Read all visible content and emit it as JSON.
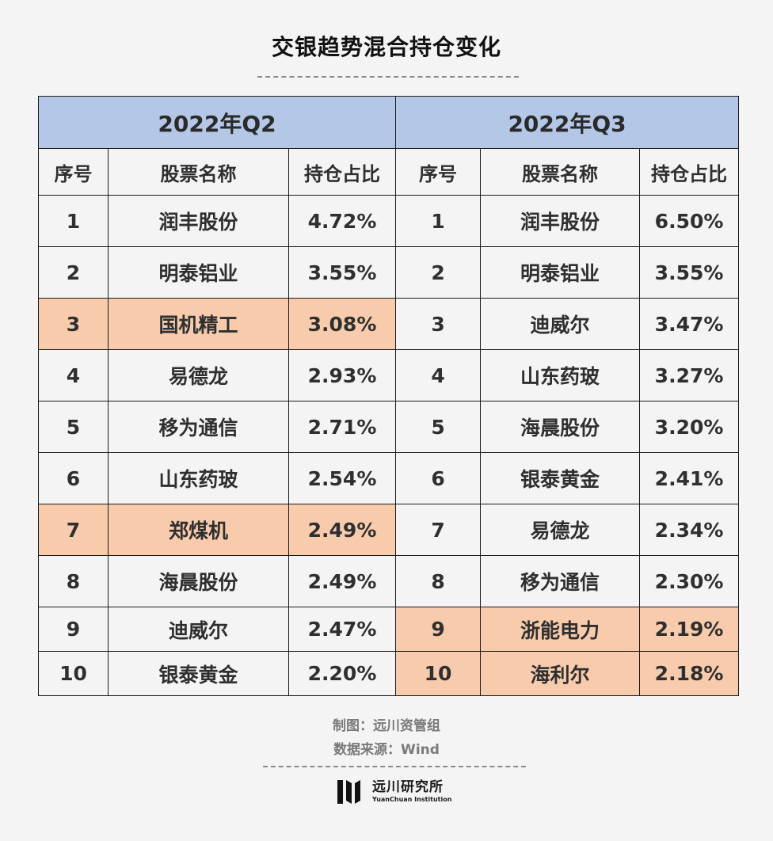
{
  "title": "交银趋势混合持仓变化",
  "table": {
    "quarters": [
      "2022年Q2",
      "2022年Q3"
    ],
    "columns": [
      "序号",
      "股票名称",
      "持仓占比"
    ],
    "q2_rows": [
      {
        "rank": "1",
        "name": "润丰股份",
        "share": "4.72%",
        "highlight": false
      },
      {
        "rank": "2",
        "name": "明泰铝业",
        "share": "3.55%",
        "highlight": false
      },
      {
        "rank": "3",
        "name": "国机精工",
        "share": "3.08%",
        "highlight": true
      },
      {
        "rank": "4",
        "name": "易德龙",
        "share": "2.93%",
        "highlight": false
      },
      {
        "rank": "5",
        "name": "移为通信",
        "share": "2.71%",
        "highlight": false
      },
      {
        "rank": "6",
        "name": "山东药玻",
        "share": "2.54%",
        "highlight": false
      },
      {
        "rank": "7",
        "name": "郑煤机",
        "share": "2.49%",
        "highlight": true
      },
      {
        "rank": "8",
        "name": "海晨股份",
        "share": "2.49%",
        "highlight": false
      },
      {
        "rank": "9",
        "name": "迪威尔",
        "share": "2.47%",
        "highlight": false
      },
      {
        "rank": "10",
        "name": "银泰黄金",
        "share": "2.20%",
        "highlight": false
      }
    ],
    "q3_rows": [
      {
        "rank": "1",
        "name": "润丰股份",
        "share": "6.50%",
        "highlight": false
      },
      {
        "rank": "2",
        "name": "明泰铝业",
        "share": "3.55%",
        "highlight": false
      },
      {
        "rank": "3",
        "name": "迪威尔",
        "share": "3.47%",
        "highlight": false
      },
      {
        "rank": "4",
        "name": "山东药玻",
        "share": "3.27%",
        "highlight": false
      },
      {
        "rank": "5",
        "name": "海晨股份",
        "share": "3.20%",
        "highlight": false
      },
      {
        "rank": "6",
        "name": "银泰黄金",
        "share": "2.41%",
        "highlight": false
      },
      {
        "rank": "7",
        "name": "易德龙",
        "share": "2.34%",
        "highlight": false
      },
      {
        "rank": "8",
        "name": "移为通信",
        "share": "2.30%",
        "highlight": false
      },
      {
        "rank": "9",
        "name": "浙能电力",
        "share": "2.19%",
        "highlight": true
      },
      {
        "rank": "10",
        "name": "海利尔",
        "share": "2.18%",
        "highlight": true
      }
    ],
    "colors": {
      "header": "#b4c7e7",
      "highlight": "#f8cbad"
    }
  },
  "chart_data": {
    "type": "table",
    "title": "交银趋势混合持仓变化",
    "columns": [
      "序号",
      "股票名称",
      "持仓占比"
    ],
    "groups": [
      {
        "name": "2022年Q2",
        "rows": [
          [
            "1",
            "润丰股份",
            "4.72%"
          ],
          [
            "2",
            "明泰铝业",
            "3.55%"
          ],
          [
            "3",
            "国机精工",
            "3.08%"
          ],
          [
            "4",
            "易德龙",
            "2.93%"
          ],
          [
            "5",
            "移为通信",
            "2.71%"
          ],
          [
            "6",
            "山东药玻",
            "2.54%"
          ],
          [
            "7",
            "郑煤机",
            "2.49%"
          ],
          [
            "8",
            "海晨股份",
            "2.49%"
          ],
          [
            "9",
            "迪威尔",
            "2.47%"
          ],
          [
            "10",
            "银泰黄金",
            "2.20%"
          ]
        ]
      },
      {
        "name": "2022年Q3",
        "rows": [
          [
            "1",
            "润丰股份",
            "6.50%"
          ],
          [
            "2",
            "明泰铝业",
            "3.55%"
          ],
          [
            "3",
            "迪威尔",
            "3.47%"
          ],
          [
            "4",
            "山东药玻",
            "3.27%"
          ],
          [
            "5",
            "海晨股份",
            "3.20%"
          ],
          [
            "6",
            "银泰黄金",
            "2.41%"
          ],
          [
            "7",
            "易德龙",
            "2.34%"
          ],
          [
            "8",
            "移为通信",
            "2.30%"
          ],
          [
            "9",
            "浙能电力",
            "2.19%"
          ],
          [
            "10",
            "海利尔",
            "2.18%"
          ]
        ]
      }
    ]
  },
  "footer": {
    "maker": "制图：远川资管组",
    "source": "数据来源：Wind"
  },
  "logo": {
    "cn": "远川研究所",
    "en": "YuanChuan Institution",
    "icon": "yuanchuan-logo-mark"
  }
}
